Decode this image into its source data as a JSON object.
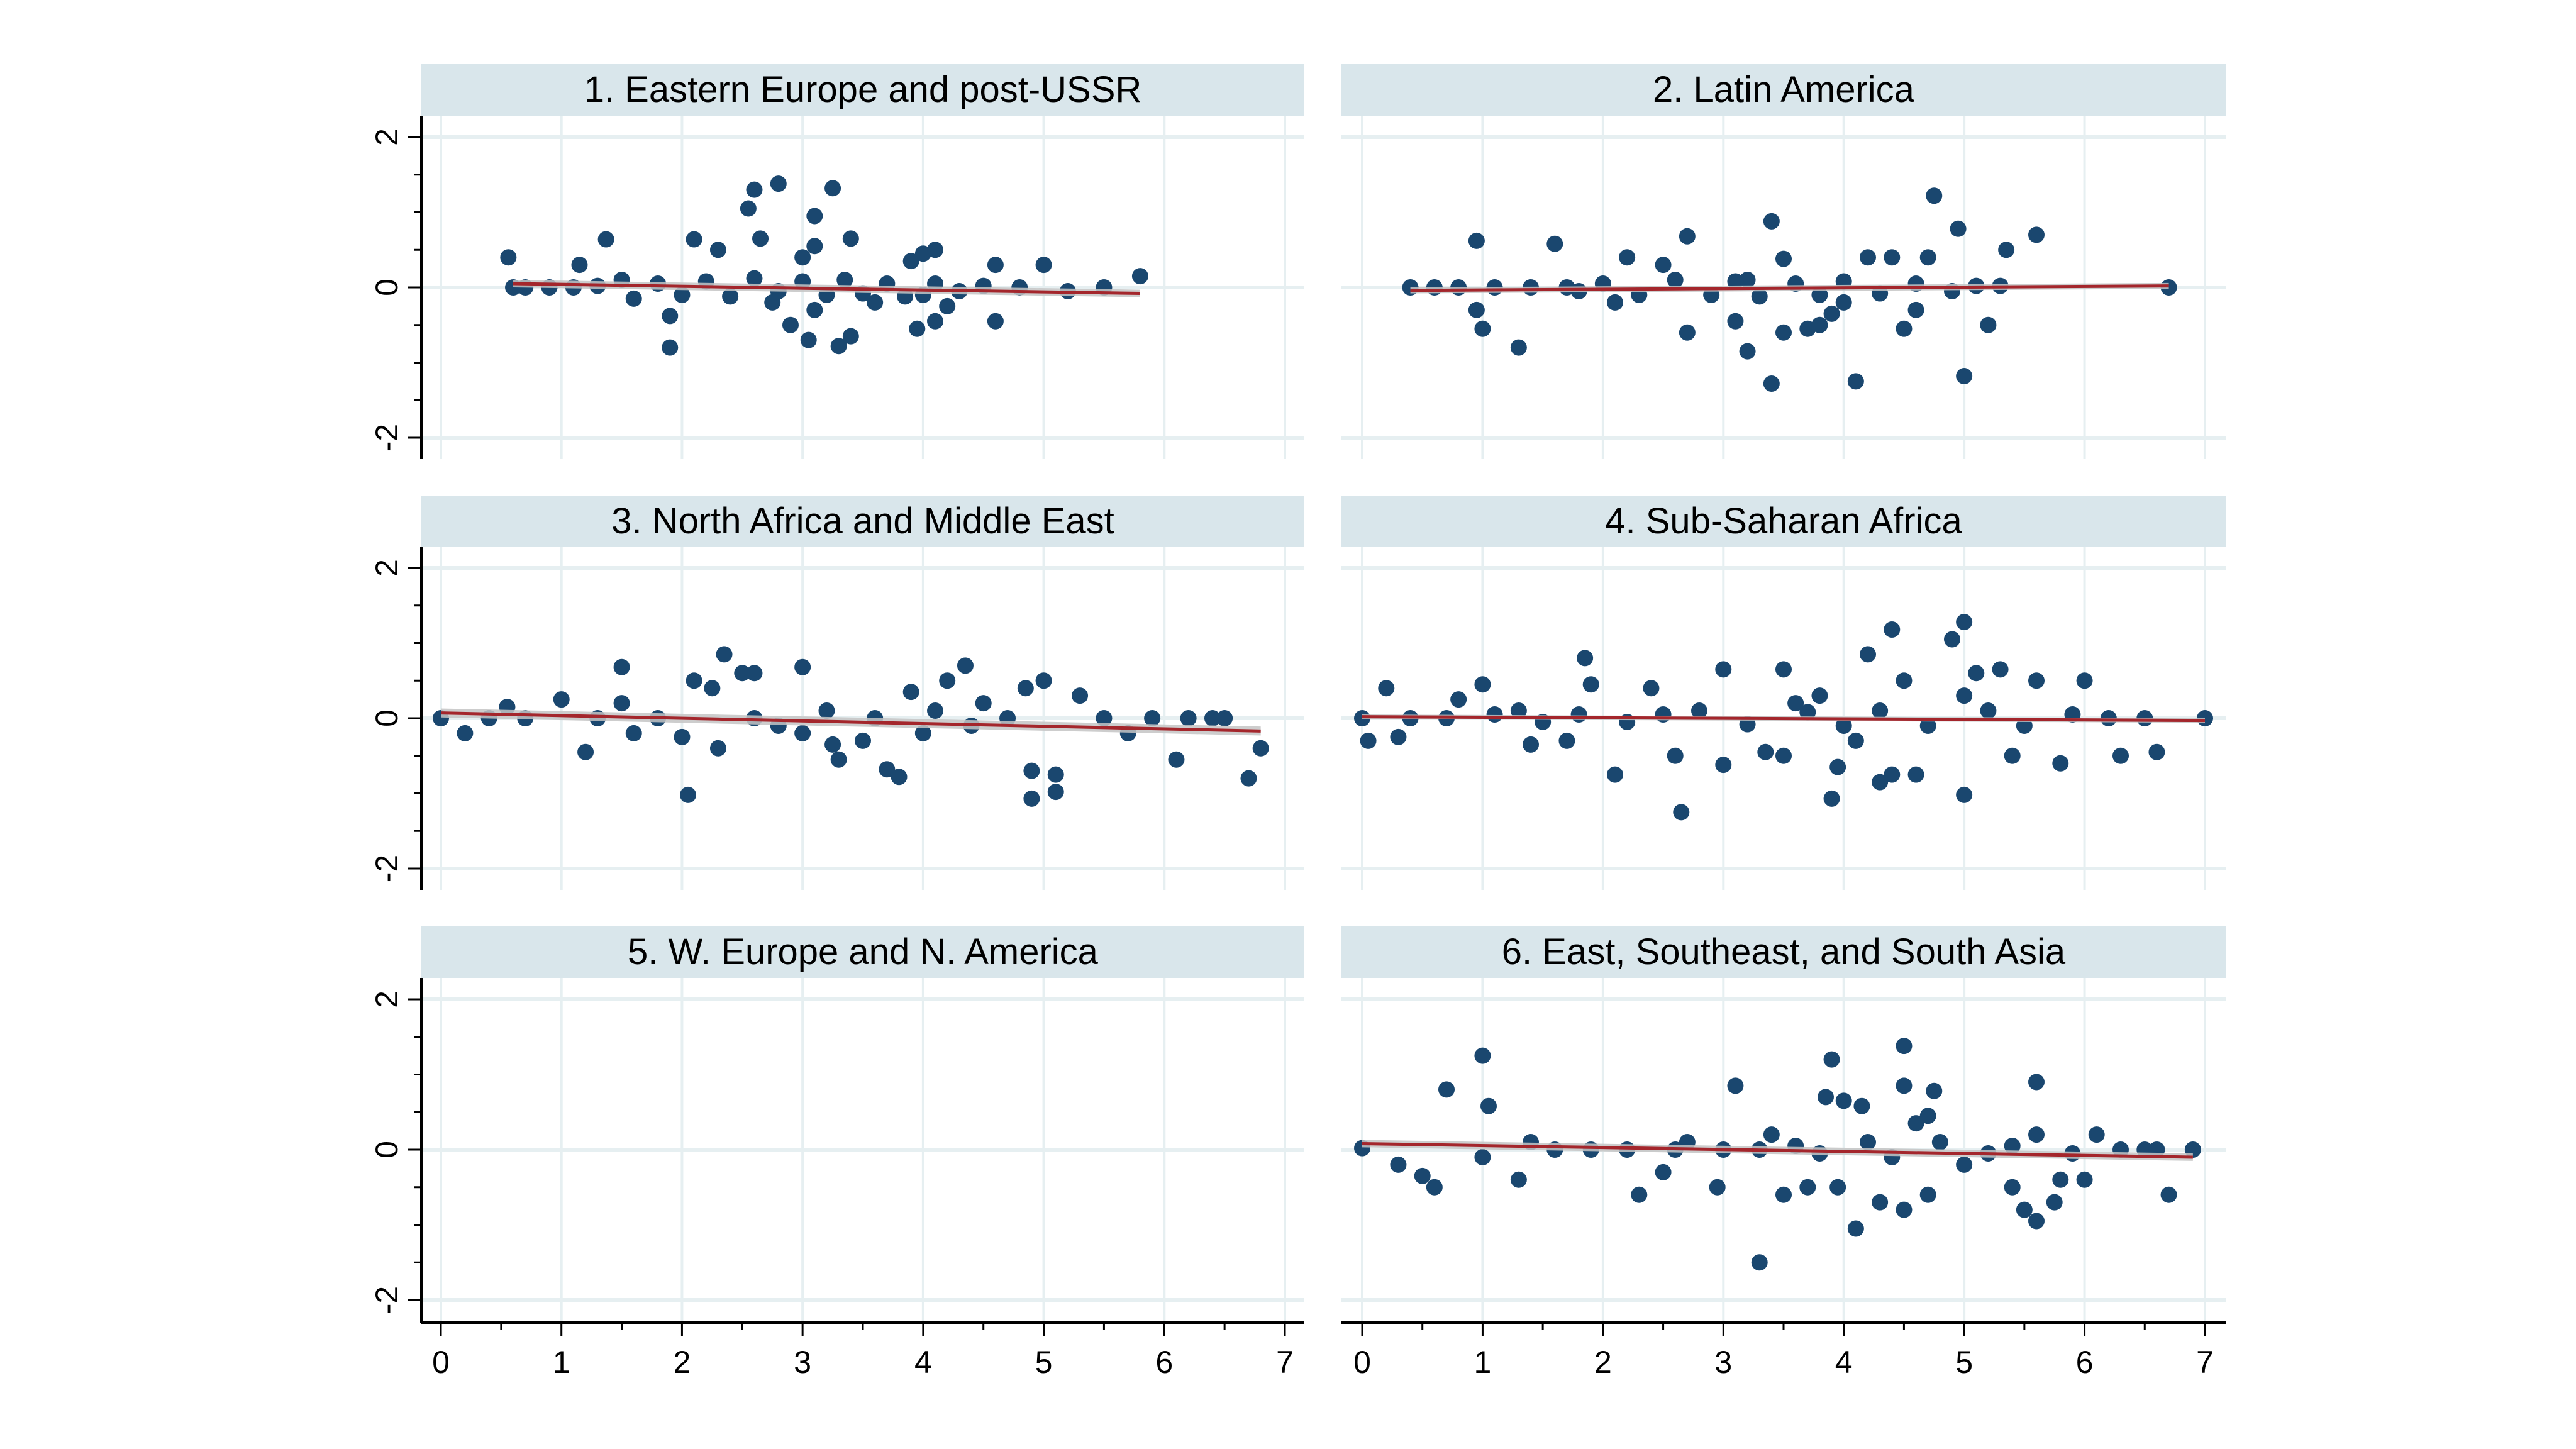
{
  "chart_data": [
    {
      "type": "scatter",
      "title": "1. Eastern Europe and post-USSR",
      "xlim": [
        0,
        7
      ],
      "ylim": [
        -2,
        2
      ],
      "xticks": [
        "0",
        "1",
        "2",
        "3",
        "4",
        "5",
        "6",
        "7"
      ],
      "yticks": [
        "-2",
        "0",
        "2"
      ],
      "grid": true,
      "fit_line": {
        "x": [
          0.6,
          5.8
        ],
        "y": [
          0.05,
          -0.08
        ],
        "ci_halfwidth": 0.05
      },
      "points": [
        [
          0.56,
          0.4
        ],
        [
          1.15,
          0.3
        ],
        [
          1.37,
          0.64
        ],
        [
          1.9,
          -0.38
        ],
        [
          1.9,
          -0.8
        ],
        [
          2.1,
          0.64
        ],
        [
          2.3,
          0.5
        ],
        [
          2.55,
          1.05
        ],
        [
          2.6,
          1.3
        ],
        [
          2.8,
          1.38
        ],
        [
          2.65,
          0.65
        ],
        [
          3.0,
          0.4
        ],
        [
          3.1,
          0.95
        ],
        [
          3.25,
          1.32
        ],
        [
          3.1,
          0.55
        ],
        [
          3.4,
          0.65
        ],
        [
          2.9,
          -0.5
        ],
        [
          3.05,
          -0.7
        ],
        [
          3.3,
          -0.78
        ],
        [
          3.4,
          -0.65
        ],
        [
          3.1,
          -0.3
        ],
        [
          2.75,
          -0.2
        ],
        [
          3.9,
          0.35
        ],
        [
          4.0,
          0.45
        ],
        [
          4.1,
          0.5
        ],
        [
          3.95,
          -0.55
        ],
        [
          4.1,
          -0.45
        ],
        [
          4.2,
          -0.25
        ],
        [
          4.6,
          0.3
        ],
        [
          4.6,
          -0.45
        ],
        [
          5.0,
          0.3
        ],
        [
          5.8,
          0.15
        ],
        [
          4.0,
          -0.1
        ],
        [
          3.6,
          -0.2
        ],
        [
          0.6,
          0
        ],
        [
          0.7,
          0
        ],
        [
          0.9,
          0
        ],
        [
          1.1,
          0
        ],
        [
          1.3,
          0.02
        ],
        [
          1.5,
          0.1
        ],
        [
          1.6,
          -0.15
        ],
        [
          1.8,
          0.05
        ],
        [
          2.0,
          -0.1
        ],
        [
          2.2,
          0.08
        ],
        [
          2.4,
          -0.12
        ],
        [
          2.6,
          0.12
        ],
        [
          2.8,
          -0.05
        ],
        [
          3.0,
          0.08
        ],
        [
          3.2,
          -0.1
        ],
        [
          3.35,
          0.1
        ],
        [
          3.5,
          -0.08
        ],
        [
          3.7,
          0.05
        ],
        [
          3.85,
          -0.12
        ],
        [
          4.1,
          0.05
        ],
        [
          4.3,
          -0.05
        ],
        [
          4.5,
          0.02
        ],
        [
          4.8,
          0.0
        ],
        [
          5.2,
          -0.05
        ],
        [
          5.5,
          0.0
        ]
      ]
    },
    {
      "type": "scatter",
      "title": "2. Latin America",
      "xlim": [
        0,
        7
      ],
      "ylim": [
        -2,
        2
      ],
      "xticks": [
        "0",
        "1",
        "2",
        "3",
        "4",
        "5",
        "6",
        "7"
      ],
      "yticks": [
        "-2",
        "0",
        "2"
      ],
      "grid": true,
      "fit_line": {
        "x": [
          0.4,
          6.7
        ],
        "y": [
          -0.04,
          0.02
        ],
        "ci_halfwidth": 0.04
      },
      "points": [
        [
          0.95,
          0.62
        ],
        [
          1.6,
          0.58
        ],
        [
          0.95,
          -0.3
        ],
        [
          1.0,
          -0.55
        ],
        [
          1.3,
          -0.8
        ],
        [
          2.2,
          0.4
        ],
        [
          2.5,
          0.3
        ],
        [
          2.7,
          0.68
        ],
        [
          3.4,
          0.88
        ],
        [
          3.5,
          0.38
        ],
        [
          3.2,
          0.1
        ],
        [
          2.7,
          -0.6
        ],
        [
          3.1,
          -0.45
        ],
        [
          3.2,
          -0.85
        ],
        [
          3.4,
          -1.28
        ],
        [
          3.5,
          -0.6
        ],
        [
          3.7,
          -0.55
        ],
        [
          3.8,
          -0.5
        ],
        [
          4.1,
          -1.25
        ],
        [
          4.0,
          -0.2
        ],
        [
          4.2,
          0.4
        ],
        [
          4.4,
          0.4
        ],
        [
          4.7,
          0.4
        ],
        [
          4.75,
          1.22
        ],
        [
          4.95,
          0.78
        ],
        [
          5.0,
          -1.18
        ],
        [
          5.2,
          -0.5
        ],
        [
          5.35,
          0.5
        ],
        [
          5.6,
          0.7
        ],
        [
          5.3,
          0.02
        ],
        [
          6.7,
          0.0
        ],
        [
          4.5,
          -0.55
        ],
        [
          4.6,
          -0.3
        ],
        [
          3.9,
          -0.35
        ],
        [
          2.1,
          -0.2
        ],
        [
          1.8,
          -0.05
        ],
        [
          0.4,
          0
        ],
        [
          0.6,
          0
        ],
        [
          0.8,
          0
        ],
        [
          1.1,
          0
        ],
        [
          1.4,
          0
        ],
        [
          1.7,
          0
        ],
        [
          2.0,
          0.05
        ],
        [
          2.3,
          -0.1
        ],
        [
          2.6,
          0.1
        ],
        [
          2.9,
          -0.1
        ],
        [
          3.1,
          0.08
        ],
        [
          3.3,
          -0.12
        ],
        [
          3.6,
          0.05
        ],
        [
          3.8,
          -0.1
        ],
        [
          4.0,
          0.08
        ],
        [
          4.3,
          -0.08
        ],
        [
          4.6,
          0.05
        ],
        [
          4.9,
          -0.05
        ],
        [
          5.1,
          0.02
        ]
      ]
    },
    {
      "type": "scatter",
      "title": "3. North Africa and Middle East",
      "xlim": [
        0,
        7
      ],
      "ylim": [
        -2,
        2
      ],
      "xticks": [
        "0",
        "1",
        "2",
        "3",
        "4",
        "5",
        "6",
        "7"
      ],
      "yticks": [
        "-2",
        "0",
        "2"
      ],
      "grid": true,
      "fit_line": {
        "x": [
          0.0,
          6.8
        ],
        "y": [
          0.07,
          -0.17
        ],
        "ci_halfwidth": 0.06
      },
      "points": [
        [
          0,
          0
        ],
        [
          0.2,
          -0.2
        ],
        [
          0.55,
          0.15
        ],
        [
          1.0,
          0.25
        ],
        [
          1.2,
          -0.45
        ],
        [
          1.5,
          0.68
        ],
        [
          1.5,
          0.2
        ],
        [
          1.6,
          -0.2
        ],
        [
          2.0,
          -0.25
        ],
        [
          2.05,
          -1.02
        ],
        [
          2.1,
          0.5
        ],
        [
          2.25,
          0.4
        ],
        [
          2.3,
          -0.4
        ],
        [
          2.35,
          0.85
        ],
        [
          2.5,
          0.6
        ],
        [
          2.6,
          0.6
        ],
        [
          2.8,
          -0.1
        ],
        [
          3.0,
          0.68
        ],
        [
          3.0,
          -0.2
        ],
        [
          3.25,
          -0.35
        ],
        [
          3.3,
          -0.55
        ],
        [
          3.5,
          -0.3
        ],
        [
          3.7,
          -0.68
        ],
        [
          3.8,
          -0.78
        ],
        [
          3.9,
          0.35
        ],
        [
          4.0,
          -0.2
        ],
        [
          4.2,
          0.5
        ],
        [
          4.35,
          0.7
        ],
        [
          4.5,
          0.2
        ],
        [
          4.85,
          0.4
        ],
        [
          4.9,
          -0.7
        ],
        [
          4.9,
          -1.07
        ],
        [
          5.0,
          0.5
        ],
        [
          5.1,
          -0.75
        ],
        [
          5.1,
          -0.98
        ],
        [
          5.3,
          0.3
        ],
        [
          5.7,
          -0.2
        ],
        [
          6.1,
          -0.55
        ],
        [
          6.7,
          -0.8
        ],
        [
          6.8,
          -0.4
        ],
        [
          6.4,
          0.0
        ],
        [
          6.5,
          0.0
        ],
        [
          0.4,
          0
        ],
        [
          0.7,
          0
        ],
        [
          1.3,
          0
        ],
        [
          1.8,
          0
        ],
        [
          2.6,
          0
        ],
        [
          3.2,
          0.1
        ],
        [
          3.6,
          0
        ],
        [
          4.1,
          0.1
        ],
        [
          4.4,
          -0.1
        ],
        [
          4.7,
          0
        ],
        [
          5.5,
          0
        ],
        [
          5.9,
          0
        ],
        [
          6.2,
          0
        ]
      ]
    },
    {
      "type": "scatter",
      "title": "4. Sub-Saharan Africa",
      "xlim": [
        0,
        7
      ],
      "ylim": [
        -2,
        2
      ],
      "xticks": [
        "0",
        "1",
        "2",
        "3",
        "4",
        "5",
        "6",
        "7"
      ],
      "yticks": [
        "-2",
        "0",
        "2"
      ],
      "grid": true,
      "fit_line": {
        "x": [
          0.0,
          7.0
        ],
        "y": [
          0.02,
          -0.03
        ],
        "ci_halfwidth": 0.03
      },
      "points": [
        [
          0.05,
          -0.3
        ],
        [
          0.2,
          0.4
        ],
        [
          0.3,
          -0.25
        ],
        [
          0.8,
          0.25
        ],
        [
          1.0,
          0.45
        ],
        [
          1.3,
          0.1
        ],
        [
          1.4,
          -0.35
        ],
        [
          1.7,
          -0.3
        ],
        [
          1.85,
          0.8
        ],
        [
          1.9,
          0.45
        ],
        [
          2.1,
          -0.75
        ],
        [
          2.4,
          0.4
        ],
        [
          2.6,
          -0.5
        ],
        [
          2.65,
          -1.25
        ],
        [
          3.0,
          0.65
        ],
        [
          3.0,
          -0.62
        ],
        [
          3.5,
          0.65
        ],
        [
          3.35,
          -0.45
        ],
        [
          3.5,
          -0.5
        ],
        [
          3.8,
          0.3
        ],
        [
          3.9,
          -1.07
        ],
        [
          3.95,
          -0.65
        ],
        [
          4.2,
          0.85
        ],
        [
          4.4,
          1.18
        ],
        [
          4.3,
          -0.85
        ],
        [
          4.4,
          -0.75
        ],
        [
          4.5,
          0.5
        ],
        [
          4.6,
          -0.75
        ],
        [
          4.9,
          1.05
        ],
        [
          5.0,
          1.28
        ],
        [
          5.1,
          0.6
        ],
        [
          5.0,
          -1.02
        ],
        [
          5.3,
          0.65
        ],
        [
          5.0,
          0.3
        ],
        [
          5.4,
          -0.5
        ],
        [
          5.6,
          0.5
        ],
        [
          5.8,
          -0.6
        ],
        [
          6.0,
          0.5
        ],
        [
          6.3,
          -0.5
        ],
        [
          6.6,
          -0.45
        ],
        [
          7.0,
          0.0
        ],
        [
          3.6,
          0.2
        ],
        [
          4.1,
          -0.3
        ],
        [
          2.8,
          0.1
        ],
        [
          0,
          0
        ],
        [
          0.4,
          0
        ],
        [
          0.7,
          0
        ],
        [
          1.1,
          0.05
        ],
        [
          1.5,
          -0.05
        ],
        [
          1.8,
          0.05
        ],
        [
          2.2,
          -0.05
        ],
        [
          2.5,
          0.05
        ],
        [
          3.2,
          -0.08
        ],
        [
          3.7,
          0.08
        ],
        [
          4.0,
          -0.1
        ],
        [
          4.3,
          0.1
        ],
        [
          4.7,
          -0.1
        ],
        [
          5.2,
          0.1
        ],
        [
          5.5,
          -0.1
        ],
        [
          5.9,
          0.05
        ],
        [
          6.2,
          0
        ],
        [
          6.5,
          0
        ]
      ]
    },
    {
      "type": "scatter",
      "title": "5. W. Europe and N. America",
      "xlim": [
        0,
        7
      ],
      "ylim": [
        -2,
        2
      ],
      "xticks": [
        "0",
        "1",
        "2",
        "3",
        "4",
        "5",
        "6",
        "7"
      ],
      "yticks": [
        "-2",
        "0",
        "2"
      ],
      "grid": true,
      "points": []
    },
    {
      "type": "scatter",
      "title": "6. East, Southeast, and South Asia",
      "xlim": [
        0,
        7
      ],
      "ylim": [
        -2,
        2
      ],
      "xticks": [
        "0",
        "1",
        "2",
        "3",
        "4",
        "5",
        "6",
        "7"
      ],
      "yticks": [
        "-2",
        "0",
        "2"
      ],
      "grid": true,
      "fit_line": {
        "x": [
          0.0,
          6.9
        ],
        "y": [
          0.08,
          -0.1
        ],
        "ci_halfwidth": 0.05
      },
      "points": [
        [
          0,
          0.02
        ],
        [
          0.3,
          -0.2
        ],
        [
          0.5,
          -0.35
        ],
        [
          0.6,
          -0.5
        ],
        [
          0.7,
          0.8
        ],
        [
          1.0,
          1.25
        ],
        [
          1.05,
          0.58
        ],
        [
          1.0,
          -0.1
        ],
        [
          1.3,
          -0.4
        ],
        [
          1.4,
          0.1
        ],
        [
          2.3,
          -0.6
        ],
        [
          2.5,
          -0.3
        ],
        [
          2.7,
          0.1
        ],
        [
          2.95,
          -0.5
        ],
        [
          3.1,
          0.85
        ],
        [
          3.3,
          -1.5
        ],
        [
          3.4,
          0.2
        ],
        [
          3.5,
          -0.6
        ],
        [
          3.7,
          -0.5
        ],
        [
          3.85,
          0.7
        ],
        [
          3.95,
          -0.5
        ],
        [
          3.9,
          1.2
        ],
        [
          4.0,
          0.65
        ],
        [
          4.15,
          0.58
        ],
        [
          4.1,
          -1.05
        ],
        [
          4.3,
          -0.7
        ],
        [
          4.5,
          1.38
        ],
        [
          4.5,
          0.85
        ],
        [
          4.6,
          0.35
        ],
        [
          4.7,
          0.45
        ],
        [
          4.75,
          0.78
        ],
        [
          4.5,
          -0.8
        ],
        [
          4.7,
          -0.6
        ],
        [
          5.0,
          -0.2
        ],
        [
          5.4,
          -0.5
        ],
        [
          5.5,
          -0.8
        ],
        [
          5.6,
          -0.95
        ],
        [
          5.6,
          0.9
        ],
        [
          5.6,
          0.2
        ],
        [
          5.8,
          -0.4
        ],
        [
          5.75,
          -0.7
        ],
        [
          6.0,
          -0.4
        ],
        [
          6.1,
          0.2
        ],
        [
          6.5,
          0.0
        ],
        [
          6.6,
          0.0
        ],
        [
          6.7,
          -0.6
        ],
        [
          6.9,
          0.0
        ],
        [
          1.6,
          0
        ],
        [
          1.9,
          0
        ],
        [
          2.2,
          0
        ],
        [
          2.6,
          0
        ],
        [
          3.0,
          0
        ],
        [
          3.3,
          0
        ],
        [
          3.6,
          0.05
        ],
        [
          3.8,
          -0.05
        ],
        [
          4.2,
          0.1
        ],
        [
          4.4,
          -0.1
        ],
        [
          4.8,
          0.1
        ],
        [
          5.2,
          -0.05
        ],
        [
          5.4,
          0.05
        ],
        [
          5.9,
          -0.05
        ],
        [
          6.3,
          0
        ]
      ]
    }
  ],
  "colors": {
    "marker": "#1a476f",
    "fit_line": "#a4262c",
    "ci_band": "#c4c4c4",
    "strip_background": "#d9e6eb",
    "grid": "#e6eff1"
  }
}
